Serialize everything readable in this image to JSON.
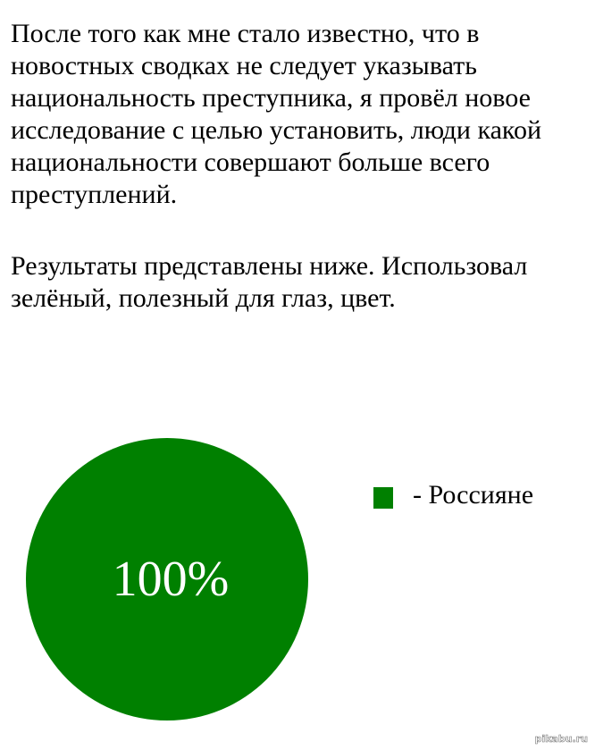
{
  "text": {
    "paragraph1": "После того как мне стало известно, что в новостных сводках не следует указывать национальность преступника, я провёл новое исследование с целью установить, люди какой национальности совершают больше всего преступлений.",
    "paragraph2": "Результаты представлены ниже. Использовал зелёный, полезный для глаз, цвет."
  },
  "chart_data": {
    "type": "pie",
    "categories": [
      "Россияне"
    ],
    "values": [
      100
    ],
    "data_labels": [
      "100%"
    ],
    "colors": [
      "#008000"
    ],
    "legend": {
      "entries": [
        "- Россияне"
      ],
      "placement": "right"
    }
  },
  "watermark": "pikabu.ru"
}
